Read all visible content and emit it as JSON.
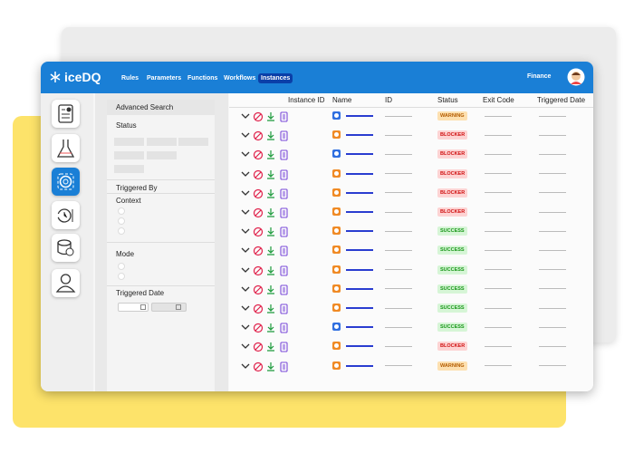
{
  "header": {
    "logo": "iceDQ",
    "nav": [
      "Rules",
      "Parameters",
      "Functions",
      "Workflows",
      "Instances"
    ],
    "active_nav": 4,
    "user": "Finance"
  },
  "search": {
    "title": "Advanced Search",
    "status": "Status",
    "triggered_by": "Triggered By",
    "context": "Context",
    "mode": "Mode",
    "triggered_date": "Triggered Date"
  },
  "table": {
    "columns": [
      "Instance ID",
      "Name",
      "ID",
      "Status",
      "Exit Code",
      "Triggered Date"
    ],
    "rows": [
      "WARNING",
      "BLOCKER",
      "BLOCKER",
      "BLOCKER",
      "BLOCKER",
      "BLOCKER",
      "SUCCESS",
      "SUCCESS",
      "SUCCESS",
      "SUCCESS",
      "SUCCESS",
      "SUCCESS",
      "BLOCKER",
      "WARNING"
    ]
  }
}
